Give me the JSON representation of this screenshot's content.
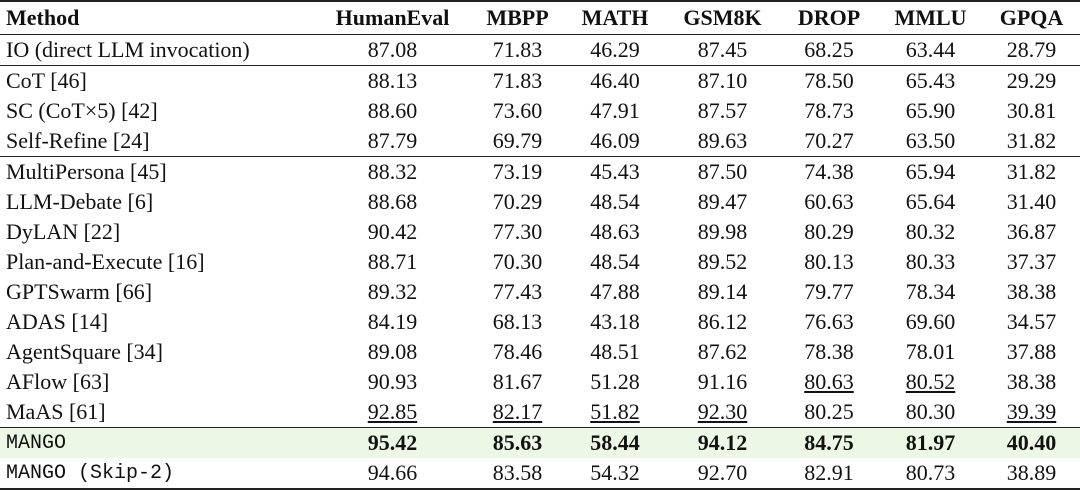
{
  "table": {
    "header": [
      "Method",
      "HumanEval",
      "MBPP",
      "MATH",
      "GSM8K",
      "DROP",
      "MMLU",
      "GPQA"
    ],
    "rows": [
      [
        "IO (direct LLM invocation)",
        "87.08",
        "71.83",
        "46.29",
        "87.45",
        "68.25",
        "63.44",
        "28.79"
      ],
      [
        "CoT [46]",
        "88.13",
        "71.83",
        "46.40",
        "87.10",
        "78.50",
        "65.43",
        "29.29"
      ],
      [
        "SC (CoT×5) [42]",
        "88.60",
        "73.60",
        "47.91",
        "87.57",
        "78.73",
        "65.90",
        "30.81"
      ],
      [
        "Self-Refine [24]",
        "87.79",
        "69.79",
        "46.09",
        "89.63",
        "70.27",
        "63.50",
        "31.82"
      ],
      [
        "MultiPersona [45]",
        "88.32",
        "73.19",
        "45.43",
        "87.50",
        "74.38",
        "65.94",
        "31.82"
      ],
      [
        "LLM-Debate [6]",
        "88.68",
        "70.29",
        "48.54",
        "89.47",
        "60.63",
        "65.64",
        "31.40"
      ],
      [
        "DyLAN [22]",
        "90.42",
        "77.30",
        "48.63",
        "89.98",
        "80.29",
        "80.32",
        "36.87"
      ],
      [
        "Plan-and-Execute [16]",
        "88.71",
        "70.30",
        "48.54",
        "89.52",
        "80.13",
        "80.33",
        "37.37"
      ],
      [
        "GPTSwarm [66]",
        "89.32",
        "77.43",
        "47.88",
        "89.14",
        "79.77",
        "78.34",
        "38.38"
      ],
      [
        "ADAS [14]",
        "84.19",
        "68.13",
        "43.18",
        "86.12",
        "76.63",
        "69.60",
        "34.57"
      ],
      [
        "AgentSquare [34]",
        "89.08",
        "78.46",
        "48.51",
        "87.62",
        "78.38",
        "78.01",
        "37.88"
      ],
      [
        "AFlow [63]",
        "90.93",
        "81.67",
        "51.28",
        "91.16",
        "80.63",
        "80.52",
        "38.38"
      ],
      [
        "MaAS [61]",
        "92.85",
        "82.17",
        "51.82",
        "92.30",
        "80.25",
        "80.30",
        "39.39"
      ],
      [
        "MANGO",
        "95.42",
        "85.63",
        "58.44",
        "94.12",
        "84.75",
        "81.97",
        "40.40"
      ],
      [
        "MANGO (Skip-2)",
        "94.66",
        "83.58",
        "54.32",
        "92.70",
        "82.91",
        "80.73",
        "38.89"
      ]
    ]
  }
}
